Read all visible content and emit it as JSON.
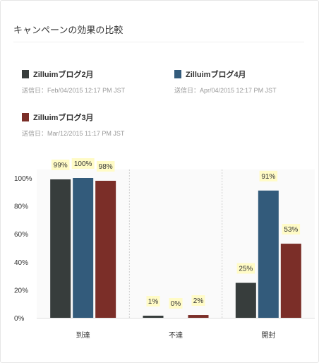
{
  "title": "キャンペーンの効果の比較",
  "legend": [
    {
      "name": "Zilluimブログ2月",
      "date": "送信日：Feb/04/2015 12:17 PM JST",
      "color": "#373d3c"
    },
    {
      "name": "Zilluimブログ4月",
      "date": "送信日：Apr/04/2015 12:17 PM JST",
      "color": "#335b7b"
    },
    {
      "name": "Zilluimブログ3月",
      "date": "送信日：Mar/12/2015 11:17 PM JST",
      "color": "#7b2e28"
    }
  ],
  "chart_data": {
    "type": "bar",
    "categories": [
      "到達",
      "不達",
      "開封"
    ],
    "series": [
      {
        "name": "Zilluimブログ2月",
        "values": [
          99,
          1,
          25
        ],
        "color": "#373d3c"
      },
      {
        "name": "Zilluimブログ4月",
        "values": [
          100,
          0,
          91
        ],
        "color": "#335b7b"
      },
      {
        "name": "Zilluimブログ3月",
        "values": [
          98,
          2,
          53
        ],
        "color": "#7b2e28"
      }
    ],
    "value_labels": [
      [
        "99%",
        "100%",
        "98%"
      ],
      [
        "1%",
        "0%",
        "2%"
      ],
      [
        "25%",
        "91%",
        "53%"
      ]
    ],
    "yticks": [
      "0%",
      "20%",
      "40%",
      "60%",
      "80%",
      "100%"
    ],
    "ylim": [
      0,
      100
    ],
    "label_bg": "#fffbc6",
    "grid": false
  }
}
